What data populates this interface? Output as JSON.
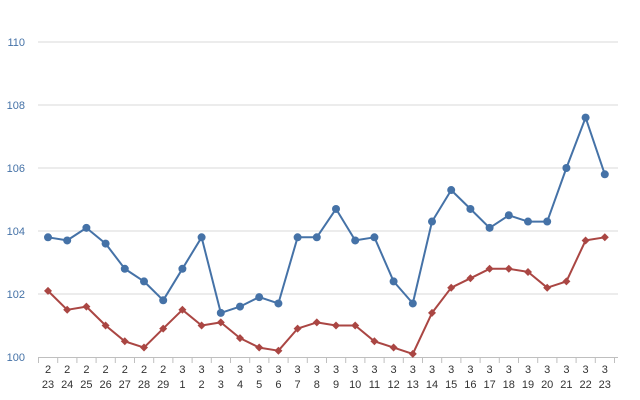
{
  "chart_data": {
    "type": "line",
    "title": "",
    "xlabel": "",
    "ylabel": "",
    "ylim": [
      100,
      110
    ],
    "yticks": [
      "100",
      "102",
      "104",
      "106",
      "108",
      "110"
    ],
    "grid": true,
    "categories": [
      {
        "month": "2",
        "day": "23"
      },
      {
        "month": "2",
        "day": "24"
      },
      {
        "month": "2",
        "day": "25"
      },
      {
        "month": "2",
        "day": "26"
      },
      {
        "month": "2",
        "day": "27"
      },
      {
        "month": "2",
        "day": "28"
      },
      {
        "month": "2",
        "day": "29"
      },
      {
        "month": "3",
        "day": "1"
      },
      {
        "month": "3",
        "day": "2"
      },
      {
        "month": "3",
        "day": "3"
      },
      {
        "month": "3",
        "day": "4"
      },
      {
        "month": "3",
        "day": "5"
      },
      {
        "month": "3",
        "day": "6"
      },
      {
        "month": "3",
        "day": "7"
      },
      {
        "month": "3",
        "day": "8"
      },
      {
        "month": "3",
        "day": "9"
      },
      {
        "month": "3",
        "day": "10"
      },
      {
        "month": "3",
        "day": "11"
      },
      {
        "month": "3",
        "day": "12"
      },
      {
        "month": "3",
        "day": "13"
      },
      {
        "month": "3",
        "day": "14"
      },
      {
        "month": "3",
        "day": "15"
      },
      {
        "month": "3",
        "day": "16"
      },
      {
        "month": "3",
        "day": "17"
      },
      {
        "month": "3",
        "day": "18"
      },
      {
        "month": "3",
        "day": "19"
      },
      {
        "month": "3",
        "day": "20"
      },
      {
        "month": "3",
        "day": "21"
      },
      {
        "month": "3",
        "day": "22"
      },
      {
        "month": "3",
        "day": "23"
      }
    ],
    "series": [
      {
        "color": "#4572a7",
        "marker": "circle",
        "values": [
          103.8,
          103.7,
          104.1,
          103.6,
          102.8,
          102.4,
          101.8,
          102.8,
          103.8,
          101.4,
          101.6,
          101.9,
          101.7,
          103.8,
          103.8,
          104.7,
          103.7,
          103.8,
          102.4,
          101.7,
          104.3,
          105.3,
          104.7,
          104.1,
          104.5,
          104.3,
          104.3,
          106.0,
          107.6,
          105.8
        ]
      },
      {
        "color": "#aa4643",
        "marker": "diamond",
        "values": [
          102.1,
          101.5,
          101.6,
          101.0,
          100.5,
          100.3,
          100.9,
          101.5,
          101.0,
          101.1,
          100.6,
          100.3,
          100.2,
          100.9,
          101.1,
          101.0,
          101.0,
          100.5,
          100.3,
          100.1,
          101.4,
          102.2,
          102.5,
          102.8,
          102.8,
          102.7,
          102.2,
          102.4,
          103.7,
          103.8
        ]
      }
    ],
    "colors": {
      "ytick_label": "#4572a7",
      "xtick_label": "#333333",
      "gridline": "#d9d9d9",
      "axis": "#bfbfbf"
    }
  }
}
